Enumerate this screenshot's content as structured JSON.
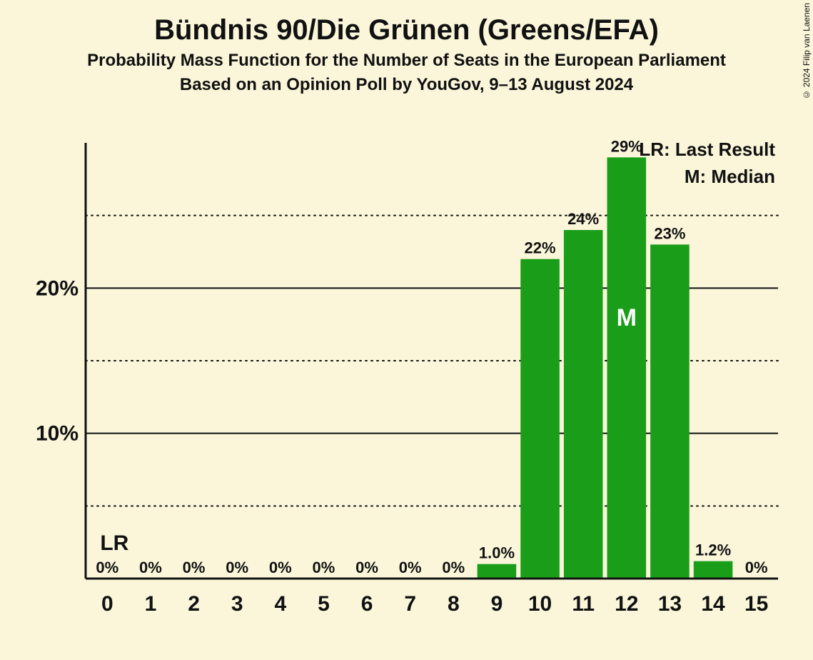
{
  "title": "Bündnis 90/Die Grünen (Greens/EFA)",
  "subtitle1": "Probability Mass Function for the Number of Seats in the European Parliament",
  "subtitle2": "Based on an Opinion Poll by YouGov, 9–13 August 2024",
  "copyright": "© 2024 Filip van Laenen",
  "legend": {
    "lr": "LR: Last Result",
    "m": "M: Median"
  },
  "ylabels": {
    "p10": "10%",
    "p20": "20%"
  },
  "lr_label": "LR",
  "m_label": "M",
  "chart": {
    "type": "bar",
    "background_color": "#fbf6da",
    "bar_color": "#1a9e1a",
    "text_color": "#111111",
    "median_text_color": "#ffffff",
    "title_fontsize": 40,
    "subtitle_fontsize": 24,
    "xlabel_fontsize": 30,
    "ylabel_fontsize": 30,
    "barlabel_fontsize": 22,
    "legend_fontsize": 26,
    "ymax": 30,
    "ytick_major": [
      10,
      20
    ],
    "ytick_minor": [
      5,
      15,
      25
    ],
    "categories": [
      "0",
      "1",
      "2",
      "3",
      "4",
      "5",
      "6",
      "7",
      "8",
      "9",
      "10",
      "11",
      "12",
      "13",
      "14",
      "15"
    ],
    "values": [
      0,
      0,
      0,
      0,
      0,
      0,
      0,
      0,
      0,
      1.0,
      22,
      24,
      29,
      23,
      1.2,
      0
    ],
    "value_labels": [
      "0%",
      "0%",
      "0%",
      "0%",
      "0%",
      "0%",
      "0%",
      "0%",
      "0%",
      "1.0%",
      "22%",
      "24%",
      "29%",
      "23%",
      "1.2%",
      "0%"
    ],
    "lr_index": 0,
    "median_index": 12,
    "bar_width_ratio": 0.9
  }
}
